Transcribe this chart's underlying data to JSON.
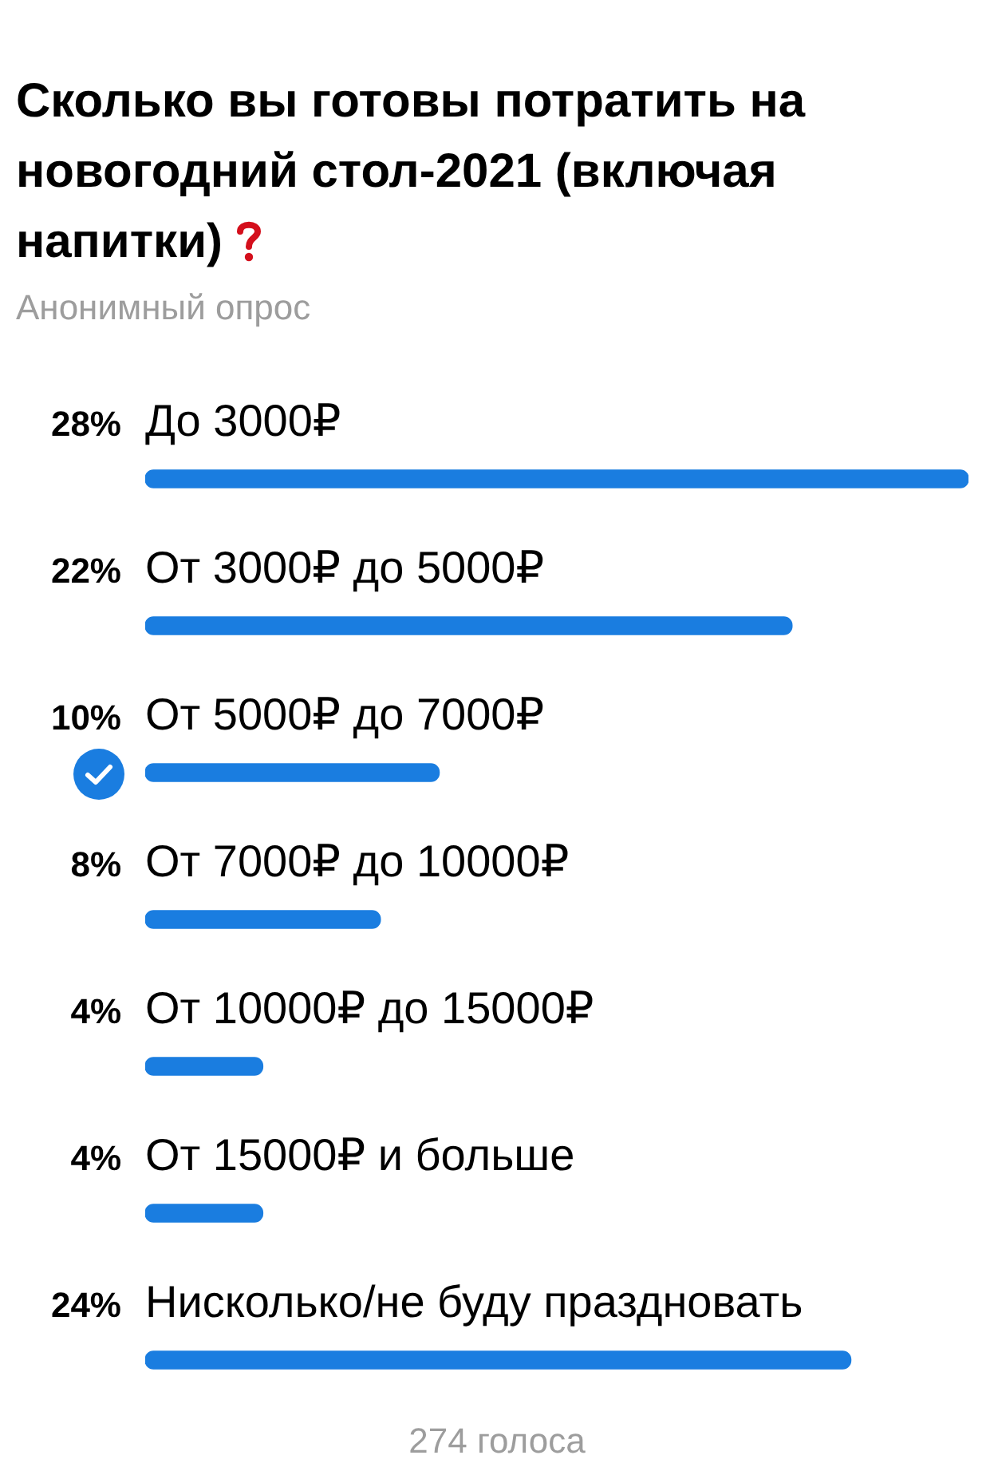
{
  "chart_data": {
    "type": "bar",
    "orientation": "horizontal",
    "title": "Сколько вы готовы потратить на новогодний стол-2021 (включая напитки)",
    "subtitle": "Анонимный опрос",
    "categories": [
      "До 3000₽",
      "От 3000₽ до 5000₽",
      "От 5000₽ до 7000₽",
      "От 7000₽ до 10000₽",
      "От 10000₽ до 15000₽",
      "От 15000₽ и больше",
      "Нисколько/не буду праздновать"
    ],
    "values": [
      28,
      22,
      10,
      8,
      4,
      4,
      24
    ],
    "value_labels": [
      "28%",
      "22%",
      "10%",
      "8%",
      "4%",
      "4%",
      "24%"
    ],
    "color": "#1a7de0",
    "annotations": [
      "274 голоса"
    ]
  }
}
